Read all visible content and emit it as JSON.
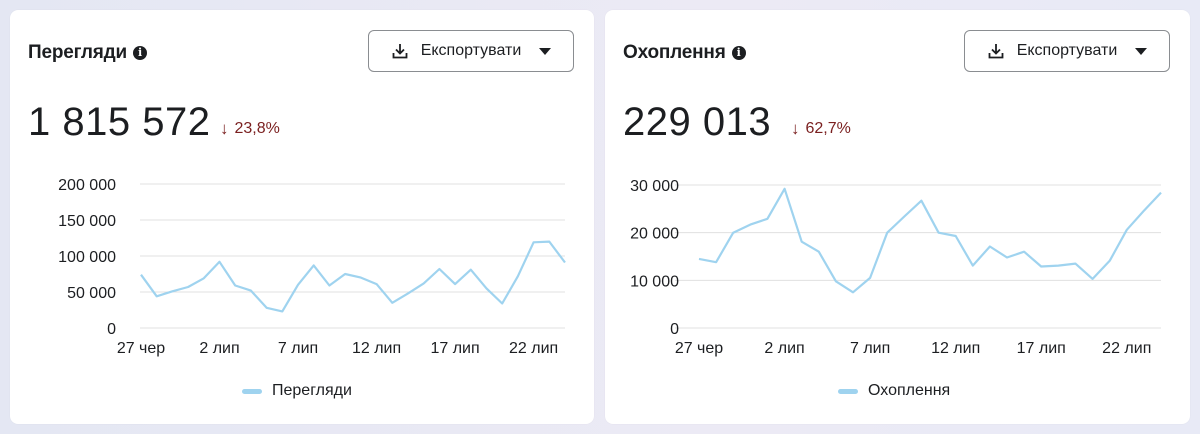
{
  "cards": [
    {
      "title": "Перегляди",
      "export_label": "Експортувати",
      "total": "1 815 572",
      "change": "23,8%",
      "change_direction": "down",
      "legend": "Перегляди"
    },
    {
      "title": "Охоплення",
      "export_label": "Експортувати",
      "total": "229 013",
      "change": "62,7%",
      "change_direction": "down",
      "legend": "Охоплення"
    }
  ],
  "colors": {
    "series": "#9fd3ef",
    "grid": "#e0e0e0",
    "down": "#7a1f1f"
  },
  "icons": {
    "info": "info-circle-icon",
    "export": "download-icon",
    "dropdown": "caret-down-icon"
  },
  "chart_data": [
    {
      "type": "line",
      "title": "",
      "xlabel": "",
      "ylabel": "",
      "x_tick_labels": [
        "27 чер",
        "2 лип",
        "7 лип",
        "12 лип",
        "17 лип",
        "22 лип"
      ],
      "y_tick_labels": [
        "200 000",
        "150 000",
        "100 000",
        "50 000",
        "0"
      ],
      "ylim": [
        0,
        200000
      ],
      "grid": true,
      "legend_position": "bottom-center",
      "series": [
        {
          "name": "Перегляди",
          "values": [
            74000,
            44000,
            51000,
            57000,
            69000,
            92000,
            59000,
            52000,
            28000,
            23000,
            60000,
            87000,
            59000,
            75000,
            70000,
            61000,
            35000,
            48000,
            62000,
            82000,
            61000,
            81000,
            55000,
            34000,
            72000,
            119000,
            120000,
            91000
          ]
        }
      ]
    },
    {
      "type": "line",
      "title": "",
      "xlabel": "",
      "ylabel": "",
      "x_tick_labels": [
        "27 чер",
        "2 лип",
        "7 лип",
        "12 лип",
        "17 лип",
        "22 лип"
      ],
      "y_tick_labels": [
        "30 000",
        "20 000",
        "10 000",
        "0"
      ],
      "ylim": [
        0,
        30000
      ],
      "grid": true,
      "legend_position": "bottom-center",
      "series": [
        {
          "name": "Охоплення",
          "values": [
            14500,
            13800,
            20000,
            21700,
            22900,
            29200,
            18100,
            16000,
            9800,
            7500,
            10500,
            20000,
            23400,
            26700,
            20000,
            19300,
            13100,
            17100,
            14800,
            16000,
            12900,
            13100,
            13500,
            10300,
            14100,
            20600,
            24600,
            28400
          ]
        }
      ]
    }
  ]
}
